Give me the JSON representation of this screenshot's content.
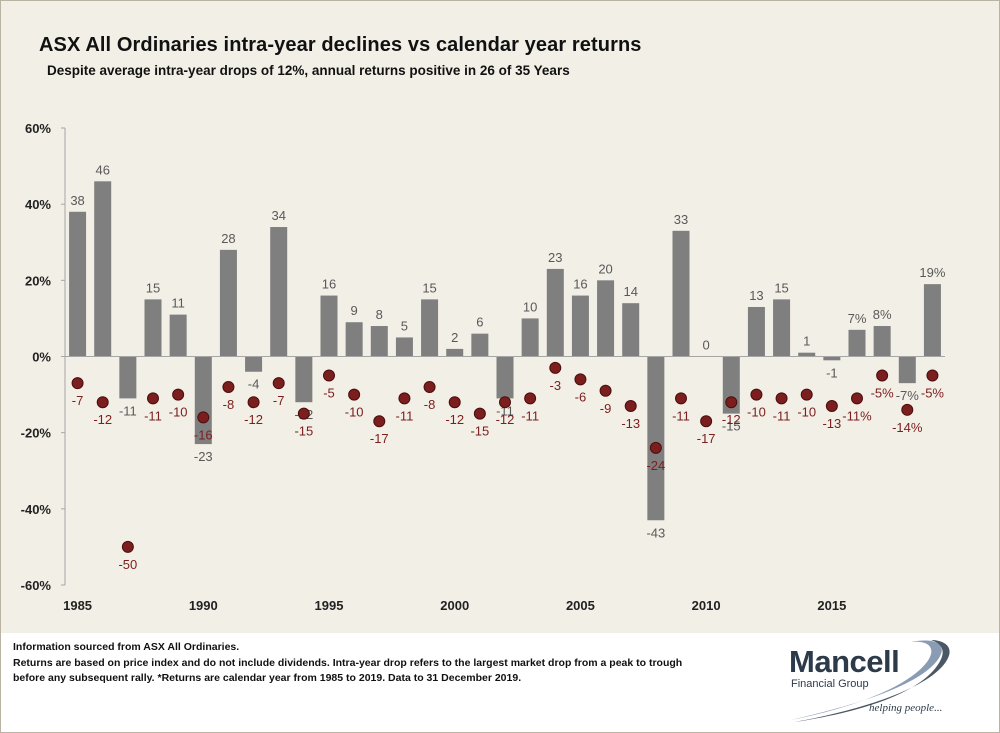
{
  "title": "ASX All Ordinaries intra-year declines vs calendar year returns",
  "subtitle": "Despite average intra-year drops of 12%, annual returns positive in 26 of 35 Years",
  "footer": {
    "line1": "Information sourced from ASX All Ordinaries.",
    "line2": "Returns are based on price index and do not include dividends. Intra-year drop refers to the largest market drop from a peak to trough",
    "line3": "before any subsequent rally. *Returns are calendar year from 1985 to 2019. Data to 31 December 2019."
  },
  "logo": {
    "name": "Mancell",
    "sub": "Financial Group",
    "tagline": "helping people..."
  },
  "colors": {
    "background": "#f2efe6",
    "bar": "#7f7f7f",
    "dot": "#7b1e1e",
    "bar_label": "#595959",
    "dot_label": "#7b1e1e"
  },
  "chart_data": {
    "type": "bar",
    "ylim": [
      -60,
      60
    ],
    "yticks": [
      -60,
      -40,
      -20,
      0,
      20,
      40,
      60
    ],
    "ytick_labels": [
      "-60%",
      "-40%",
      "-20%",
      "0%",
      "20%",
      "40%",
      "60%"
    ],
    "xtick_labels": [
      {
        "year": 1985,
        "label": "1985"
      },
      {
        "year": 1990,
        "label": "1990"
      },
      {
        "year": 1995,
        "label": "1995"
      },
      {
        "year": 2000,
        "label": "2000"
      },
      {
        "year": 2005,
        "label": "2005"
      },
      {
        "year": 2010,
        "label": "2010"
      },
      {
        "year": 2015,
        "label": "2015"
      }
    ],
    "years": [
      1985,
      1986,
      1987,
      1988,
      1989,
      1990,
      1991,
      1992,
      1993,
      1994,
      1995,
      1996,
      1997,
      1998,
      1999,
      2000,
      2001,
      2002,
      2003,
      2004,
      2005,
      2006,
      2007,
      2008,
      2009,
      2010,
      2011,
      2012,
      2013,
      2014,
      2015,
      2016,
      2017,
      2018,
      2019
    ],
    "series": [
      {
        "kind": "bar",
        "values": [
          38,
          46,
          -11,
          15,
          11,
          -23,
          28,
          -4,
          34,
          -12,
          16,
          9,
          8,
          5,
          15,
          2,
          6,
          -11,
          10,
          23,
          16,
          20,
          14,
          -43,
          33,
          0,
          -15,
          13,
          15,
          1,
          -1,
          7,
          8,
          -7,
          19
        ],
        "labels": [
          "38",
          "46",
          "-11",
          "15",
          "11",
          "-23",
          "28",
          "-4",
          "34",
          "-12",
          "16",
          "9",
          "8",
          "5",
          "15",
          "2",
          "6",
          "-11",
          "10",
          "23",
          "16",
          "20",
          "14",
          "-43",
          "33",
          "0",
          "-15",
          "13",
          "15",
          "1",
          "-1",
          "7%",
          "8%",
          "-7%",
          "19%"
        ]
      },
      {
        "kind": "dot",
        "values": [
          -7,
          -12,
          -50,
          -11,
          -10,
          -16,
          -8,
          -12,
          -7,
          -15,
          -5,
          -10,
          -17,
          -11,
          -8,
          -12,
          -15,
          -12,
          -11,
          -3,
          -6,
          -9,
          -13,
          -24,
          -11,
          -17,
          -12,
          -10,
          -11,
          -10,
          -13,
          -11,
          -5,
          -14,
          -5
        ],
        "labels": [
          "-7",
          "-12",
          "-50",
          "-11",
          "-10",
          "-16",
          "-8",
          "-12",
          "-7",
          "-15",
          "-5",
          "-10",
          "-17",
          "-11",
          "-8",
          "-12",
          "-15",
          "-12",
          "-11",
          "-3",
          "-6",
          "-9",
          "-13",
          "-24",
          "-11",
          "-17",
          "-12",
          "-10",
          "-11",
          "-10",
          "-13",
          "-11%",
          "-5%",
          "-14%",
          "-5%"
        ]
      }
    ]
  }
}
